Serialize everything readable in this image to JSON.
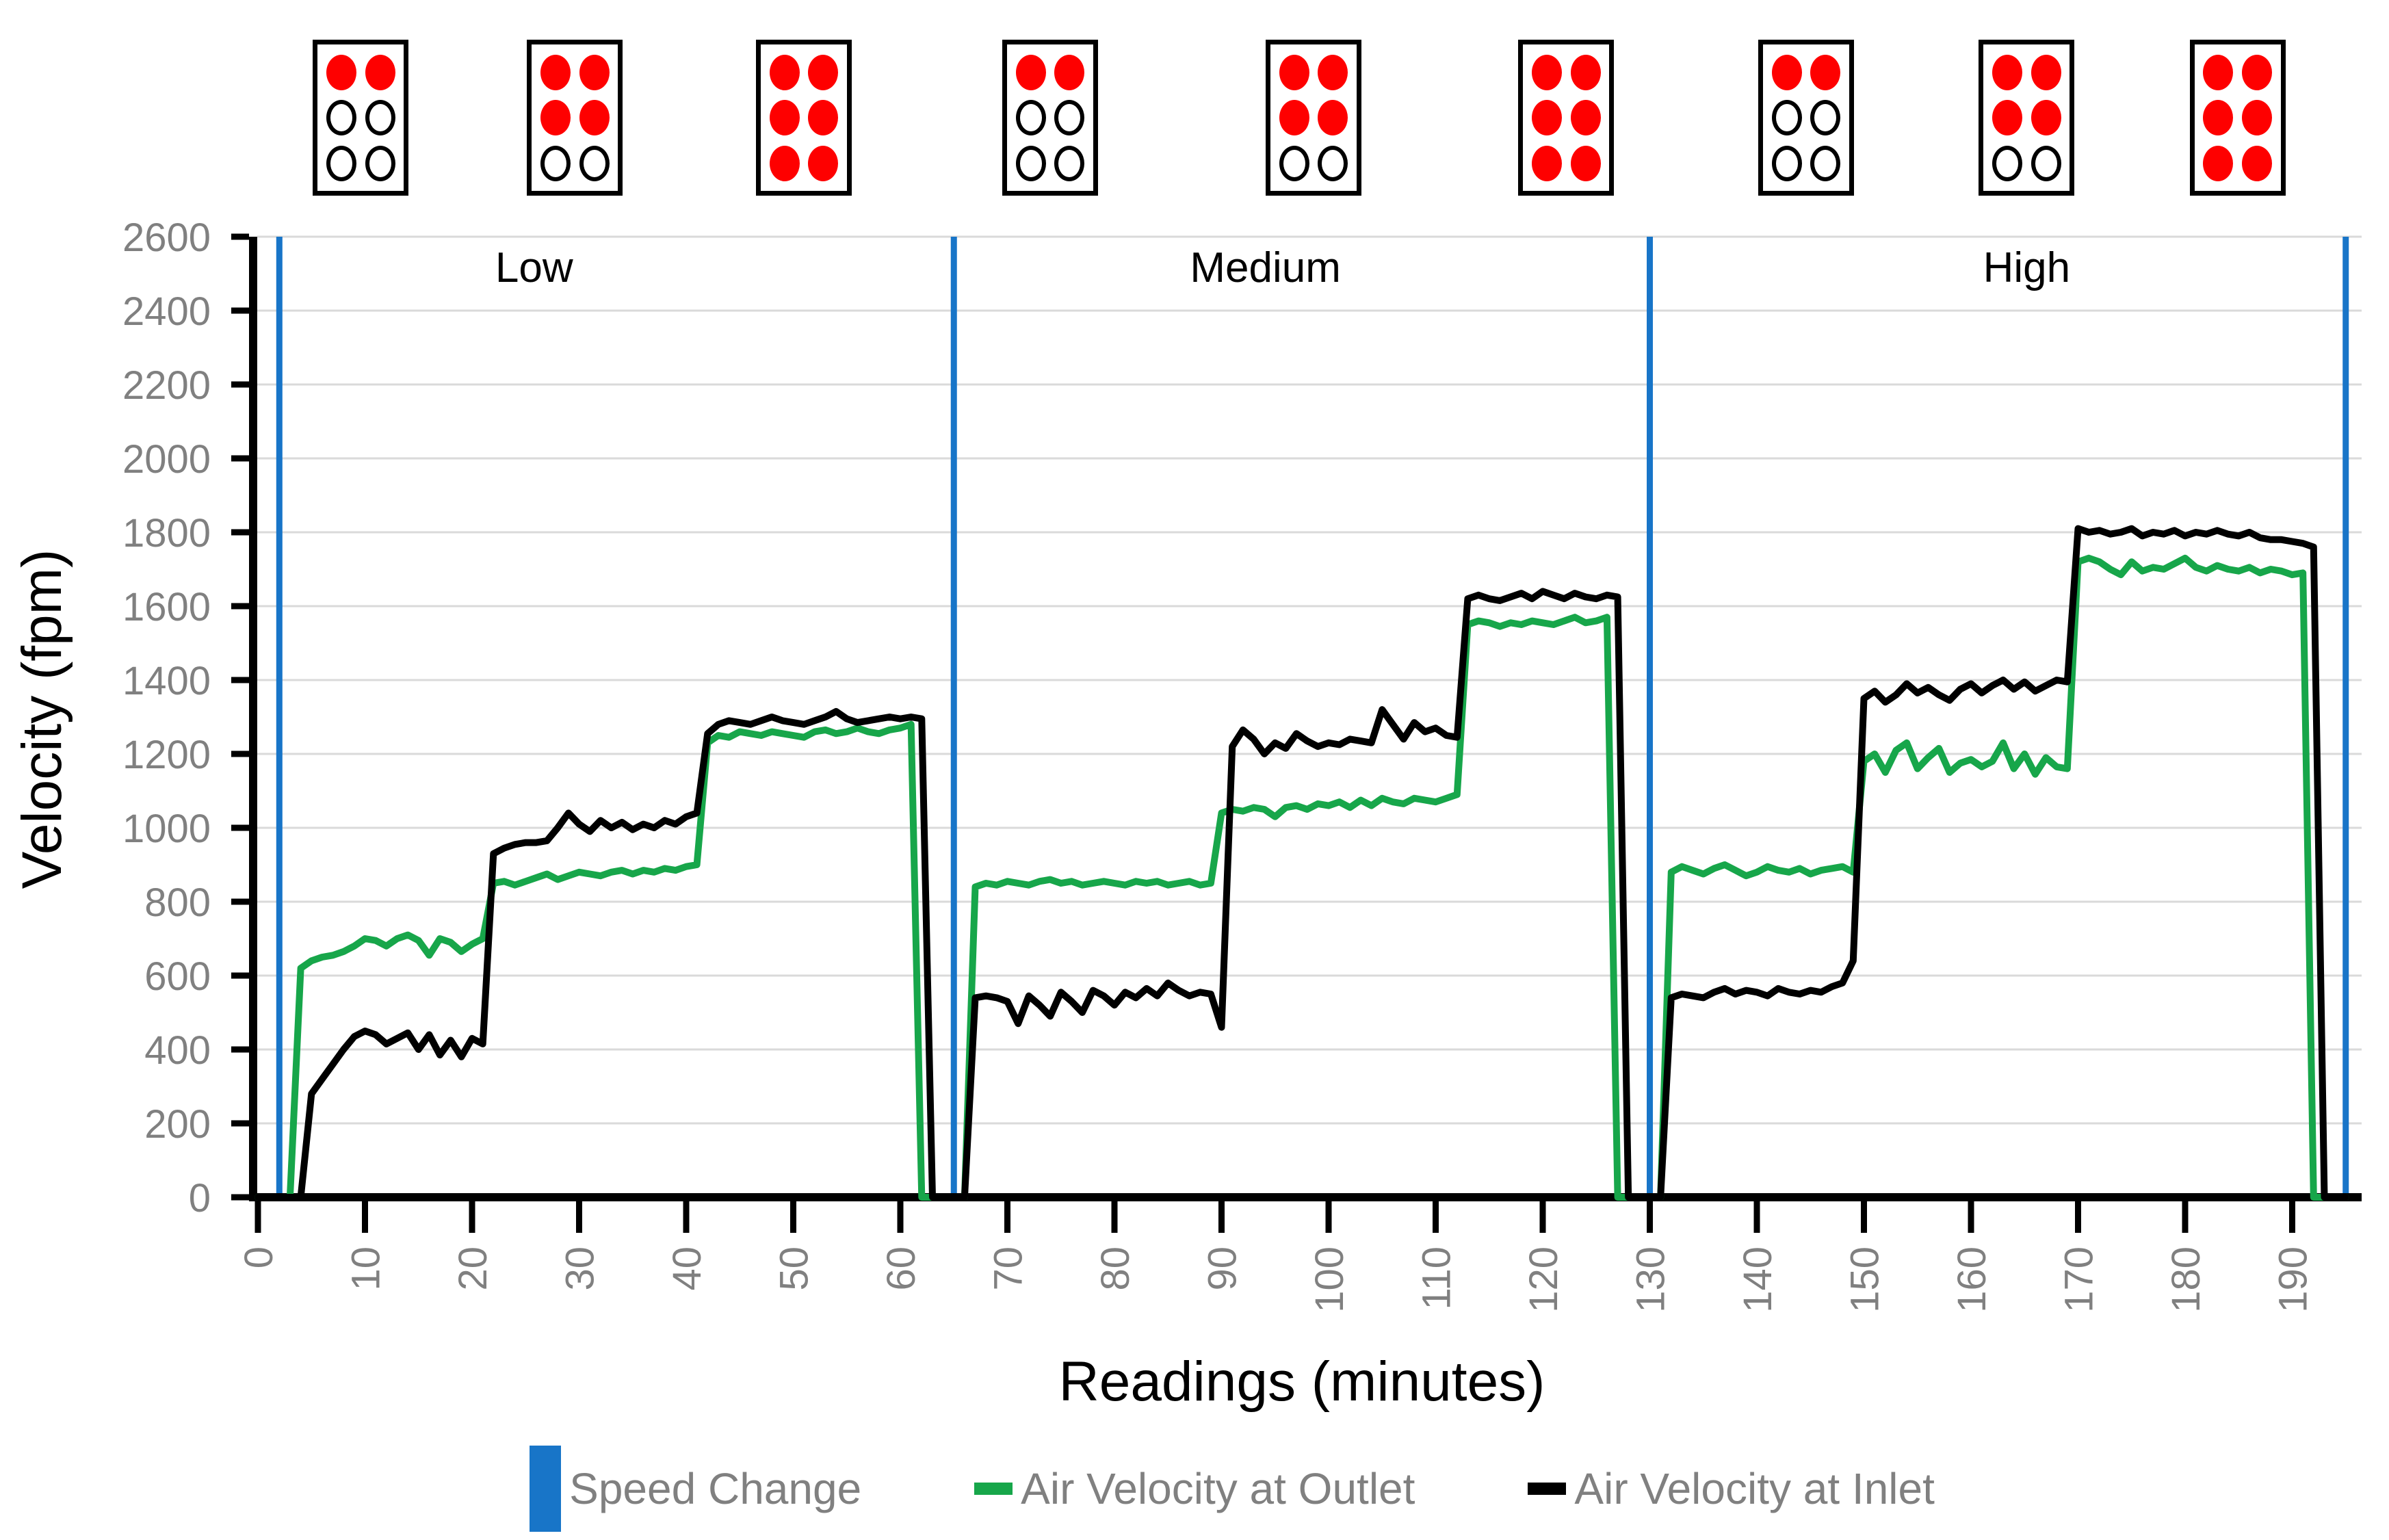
{
  "chart": {
    "y_axis": {
      "title": "Velocity (fpm)",
      "min": 0,
      "max": 2600,
      "tick_step": 200,
      "tick_labels": [
        "0",
        "200",
        "400",
        "600",
        "800",
        "1000",
        "1200",
        "1400",
        "1600",
        "1800",
        "2000",
        "2200",
        "2400",
        "2600"
      ]
    },
    "x_axis": {
      "title": "Readings (minutes)",
      "min": 0,
      "max": 195,
      "label_step": 10,
      "tick_labels": [
        "0",
        "10",
        "20",
        "30",
        "40",
        "50",
        "60",
        "70",
        "80",
        "90",
        "100",
        "110",
        "120",
        "130",
        "140",
        "150",
        "160",
        "170",
        "180",
        "190"
      ]
    },
    "sections": [
      {
        "label": "Low",
        "label_minute": 25.8,
        "fan_dots_sequence": [
          2,
          4,
          6
        ]
      },
      {
        "label": "Medium",
        "label_minute": 94.1,
        "fan_dots_sequence": [
          2,
          4,
          6
        ]
      },
      {
        "label": "High",
        "label_minute": 165.2,
        "fan_dots_sequence": [
          2,
          4,
          6
        ]
      }
    ],
    "colors": {
      "speed_change": "#1875C8",
      "outlet": "#17A64A",
      "inlet": "#000000",
      "grid": "#DADADA",
      "axis": "#000000",
      "tick_text": "#808080",
      "section_text": "#000000",
      "legend_text": "#808080",
      "fan_dot_on": "#FE0000"
    }
  },
  "chart_data": {
    "type": "line",
    "title": "",
    "xlabel": "Readings (minutes)",
    "ylabel": "Velocity (fpm)",
    "xlim": [
      0,
      195
    ],
    "ylim": [
      0,
      2600
    ],
    "grid": "horizontal",
    "legend_position": "bottom",
    "x_start_minute": 0,
    "x_step_minutes": 1,
    "speed_change_minutes": [
      2,
      65,
      130,
      195
    ],
    "series": [
      {
        "name": "Air Velocity at Outlet",
        "color": "#17A64A",
        "values": [
          0,
          0,
          0,
          0,
          620,
          640,
          650,
          655,
          665,
          680,
          700,
          695,
          680,
          700,
          710,
          695,
          655,
          700,
          690,
          665,
          685,
          700,
          850,
          855,
          845,
          855,
          865,
          875,
          860,
          870,
          880,
          875,
          870,
          880,
          885,
          875,
          885,
          880,
          890,
          885,
          895,
          900,
          1230,
          1250,
          1245,
          1260,
          1255,
          1250,
          1260,
          1255,
          1250,
          1245,
          1260,
          1265,
          1255,
          1260,
          1270,
          1260,
          1255,
          1265,
          1270,
          1280,
          0,
          0,
          0,
          0,
          0,
          840,
          850,
          845,
          855,
          850,
          845,
          855,
          860,
          850,
          855,
          845,
          850,
          855,
          850,
          845,
          855,
          850,
          855,
          845,
          850,
          855,
          845,
          850,
          1040,
          1050,
          1045,
          1055,
          1050,
          1030,
          1055,
          1060,
          1050,
          1065,
          1060,
          1070,
          1055,
          1075,
          1060,
          1080,
          1070,
          1065,
          1080,
          1075,
          1070,
          1080,
          1090,
          1550,
          1560,
          1555,
          1545,
          1555,
          1550,
          1560,
          1555,
          1550,
          1560,
          1570,
          1555,
          1560,
          1570,
          0,
          0,
          0,
          0,
          0,
          880,
          895,
          885,
          875,
          890,
          900,
          885,
          870,
          880,
          895,
          885,
          880,
          890,
          875,
          885,
          890,
          895,
          880,
          1180,
          1200,
          1150,
          1210,
          1230,
          1160,
          1190,
          1215,
          1150,
          1175,
          1185,
          1165,
          1180,
          1230,
          1160,
          1200,
          1145,
          1190,
          1165,
          1160,
          1720,
          1730,
          1720,
          1700,
          1685,
          1720,
          1695,
          1705,
          1700,
          1715,
          1730,
          1705,
          1695,
          1710,
          1700,
          1695,
          1705,
          1690,
          1700,
          1695,
          1685,
          1690,
          0,
          0,
          0,
          0
        ]
      },
      {
        "name": "Air Velocity at Inlet",
        "color": "#000000",
        "values": [
          0,
          0,
          0,
          0,
          0,
          280,
          320,
          360,
          400,
          435,
          450,
          440,
          415,
          430,
          445,
          400,
          440,
          385,
          425,
          380,
          430,
          415,
          930,
          945,
          955,
          960,
          960,
          965,
          1000,
          1040,
          1010,
          990,
          1020,
          1000,
          1015,
          995,
          1010,
          1000,
          1020,
          1010,
          1030,
          1040,
          1255,
          1280,
          1290,
          1285,
          1280,
          1290,
          1300,
          1290,
          1285,
          1280,
          1290,
          1300,
          1315,
          1295,
          1285,
          1290,
          1295,
          1300,
          1295,
          1300,
          1295,
          0,
          0,
          0,
          0,
          540,
          545,
          540,
          530,
          470,
          545,
          520,
          490,
          555,
          530,
          500,
          560,
          545,
          520,
          555,
          540,
          565,
          545,
          580,
          560,
          545,
          555,
          550,
          460,
          1220,
          1265,
          1240,
          1200,
          1230,
          1215,
          1255,
          1235,
          1220,
          1230,
          1225,
          1240,
          1235,
          1230,
          1320,
          1280,
          1240,
          1285,
          1260,
          1270,
          1250,
          1245,
          1620,
          1630,
          1620,
          1615,
          1625,
          1635,
          1620,
          1640,
          1630,
          1620,
          1635,
          1625,
          1620,
          1630,
          1625,
          0,
          0,
          0,
          0,
          540,
          550,
          545,
          540,
          555,
          565,
          550,
          560,
          555,
          545,
          565,
          555,
          550,
          560,
          555,
          570,
          580,
          640,
          1350,
          1370,
          1340,
          1360,
          1390,
          1365,
          1380,
          1360,
          1345,
          1375,
          1390,
          1365,
          1385,
          1400,
          1375,
          1395,
          1370,
          1385,
          1400,
          1395,
          1810,
          1800,
          1805,
          1795,
          1800,
          1810,
          1790,
          1800,
          1795,
          1805,
          1790,
          1800,
          1795,
          1805,
          1795,
          1790,
          1800,
          1785,
          1780,
          1780,
          1775,
          1770,
          1760,
          0,
          0,
          0
        ]
      }
    ]
  },
  "fan_indicators": {
    "rows": 3,
    "cols": 2,
    "dots_total": 6,
    "boxes": [
      {
        "minute": 9.6,
        "dots_on": 2
      },
      {
        "minute": 29.6,
        "dots_on": 4
      },
      {
        "minute": 51.0,
        "dots_on": 6
      },
      {
        "minute": 74.0,
        "dots_on": 2
      },
      {
        "minute": 98.6,
        "dots_on": 4
      },
      {
        "minute": 122.2,
        "dots_on": 6
      },
      {
        "minute": 144.6,
        "dots_on": 2
      },
      {
        "minute": 165.2,
        "dots_on": 4
      },
      {
        "minute": 184.9,
        "dots_on": 6
      }
    ]
  },
  "legend": [
    {
      "label": "Speed Change",
      "marker": "vbar",
      "color": "#1875C8"
    },
    {
      "label": "Air Velocity at Outlet",
      "marker": "dash",
      "color": "#17A64A"
    },
    {
      "label": "Air Velocity at Inlet",
      "marker": "dash",
      "color": "#000000"
    }
  ]
}
